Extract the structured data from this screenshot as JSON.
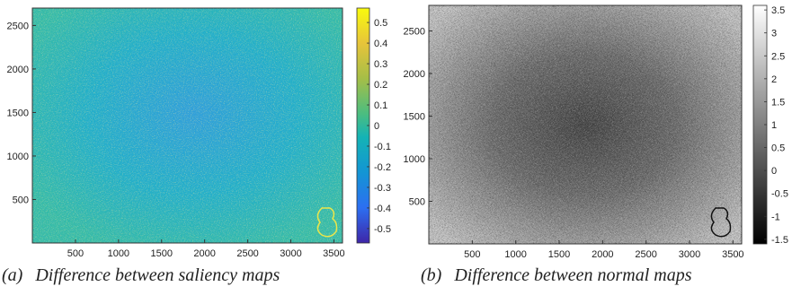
{
  "chart_data": [
    {
      "type": "heatmap",
      "title": "",
      "xlabel": "",
      "ylabel": "",
      "xlim": [
        0,
        3600
      ],
      "ylim": [
        0,
        2700
      ],
      "x_ticks": [
        500,
        1000,
        1500,
        2000,
        2500,
        3000,
        3500
      ],
      "y_ticks": [
        500,
        1000,
        1500,
        2000,
        2500
      ],
      "colormap": "parula",
      "colorbar_range": [
        -0.57,
        0.57
      ],
      "colorbar_ticks": [
        0.5,
        0.4,
        0.3,
        0.2,
        0.1,
        0,
        -0.1,
        -0.2,
        -0.3,
        -0.4,
        -0.5
      ],
      "description_values": {
        "pattern": "noisy map, lower values toward center, higher toward edges",
        "center_value": -0.12,
        "edge_value": 0.08
      },
      "caption_tag": "(a)",
      "caption": "Difference between saliency maps"
    },
    {
      "type": "heatmap",
      "title": "",
      "xlabel": "",
      "ylabel": "",
      "xlim": [
        0,
        3600
      ],
      "ylim": [
        0,
        2800
      ],
      "x_ticks": [
        500,
        1000,
        1500,
        2000,
        2500,
        3000,
        3500
      ],
      "y_ticks": [
        500,
        1000,
        1500,
        2000,
        2500
      ],
      "colormap": "gray",
      "colorbar_range": [
        -1.6,
        3.6
      ],
      "colorbar_ticks": [
        3.5,
        3,
        2.5,
        2,
        1.5,
        1,
        0.5,
        0,
        -0.5,
        -1,
        -1.5
      ],
      "description_values": {
        "pattern": "noisy map, darker toward center, brighter toward edges",
        "center_value": 0.6,
        "edge_value": 2.5
      },
      "caption_tag": "(b)",
      "caption": "Difference between normal maps"
    }
  ]
}
